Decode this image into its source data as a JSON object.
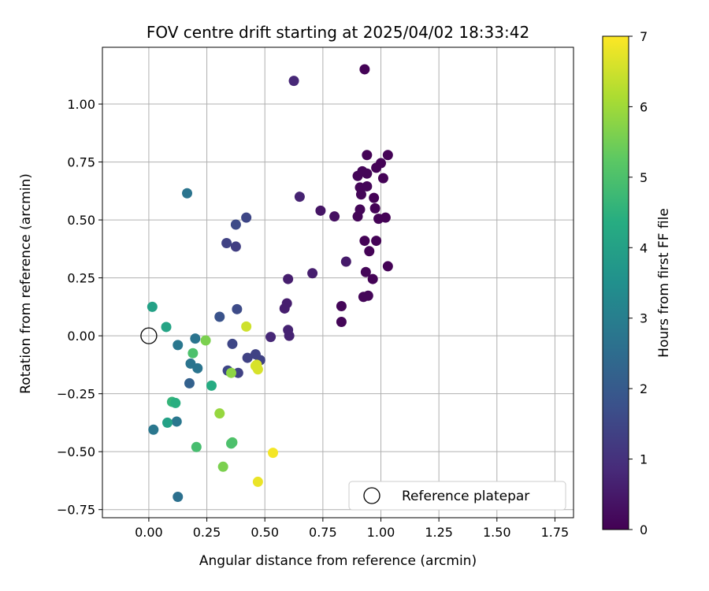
{
  "chart_data": {
    "type": "scatter",
    "title": "FOV centre drift starting at 2025/04/02 18:33:42",
    "xlabel": "Angular distance from reference (arcmin)",
    "ylabel": "Rotation from reference (arcmin)",
    "xlim": [
      -0.2,
      1.83
    ],
    "ylim": [
      -0.785,
      1.245
    ],
    "xticks": [
      0.0,
      0.25,
      0.5,
      0.75,
      1.0,
      1.25,
      1.5,
      1.75
    ],
    "xtick_labels": [
      "0.00",
      "0.25",
      "0.50",
      "0.75",
      "1.00",
      "1.25",
      "1.50",
      "1.75"
    ],
    "yticks": [
      -0.75,
      -0.5,
      -0.25,
      0.0,
      0.25,
      0.5,
      0.75,
      1.0
    ],
    "ytick_labels": [
      "−0.75",
      "−0.50",
      "−0.25",
      "0.00",
      "0.25",
      "0.50",
      "0.75",
      "1.00"
    ],
    "grid": true,
    "colormap": "viridis",
    "colorbar": {
      "label": "Hours from first FF file",
      "range": [
        0,
        7
      ],
      "ticks": [
        0,
        1,
        2,
        3,
        4,
        5,
        6,
        7
      ],
      "tick_labels": [
        "0",
        "1",
        "2",
        "3",
        "4",
        "5",
        "6",
        "7"
      ]
    },
    "legend": {
      "location": "lower right",
      "entries": [
        "Reference platepar"
      ]
    },
    "reference_point": {
      "x": 0.0,
      "y": 0.0,
      "label": "Reference platepar"
    },
    "series": [
      {
        "points": [
          {
            "x": 0.93,
            "y": 1.15,
            "c": 0.05
          },
          {
            "x": 0.94,
            "y": 0.78,
            "c": 0.05
          },
          {
            "x": 0.9,
            "y": 0.69,
            "c": 0.1
          },
          {
            "x": 0.92,
            "y": 0.71,
            "c": 0.1
          },
          {
            "x": 0.94,
            "y": 0.7,
            "c": 0.1
          },
          {
            "x": 0.91,
            "y": 0.64,
            "c": 0.1
          },
          {
            "x": 0.94,
            "y": 0.645,
            "c": 0.1
          },
          {
            "x": 0.915,
            "y": 0.61,
            "c": 0.1
          },
          {
            "x": 1.0,
            "y": 0.745,
            "c": 0.05
          },
          {
            "x": 0.98,
            "y": 0.725,
            "c": 0.05
          },
          {
            "x": 1.01,
            "y": 0.68,
            "c": 0.05
          },
          {
            "x": 1.03,
            "y": 0.78,
            "c": 0.05
          },
          {
            "x": 0.97,
            "y": 0.595,
            "c": 0.05
          },
          {
            "x": 0.975,
            "y": 0.55,
            "c": 0.05
          },
          {
            "x": 0.99,
            "y": 0.505,
            "c": 0.05
          },
          {
            "x": 1.02,
            "y": 0.51,
            "c": 0.05
          },
          {
            "x": 0.91,
            "y": 0.545,
            "c": 0.1
          },
          {
            "x": 0.9,
            "y": 0.515,
            "c": 0.1
          },
          {
            "x": 0.93,
            "y": 0.41,
            "c": 0.05
          },
          {
            "x": 0.98,
            "y": 0.41,
            "c": 0.05
          },
          {
            "x": 0.95,
            "y": 0.365,
            "c": 0.05
          },
          {
            "x": 1.03,
            "y": 0.3,
            "c": 0.05
          },
          {
            "x": 0.935,
            "y": 0.275,
            "c": 0.1
          },
          {
            "x": 0.965,
            "y": 0.245,
            "c": 0.05
          },
          {
            "x": 0.925,
            "y": 0.168,
            "c": 0.1
          },
          {
            "x": 0.945,
            "y": 0.173,
            "c": 0.1
          },
          {
            "x": 0.83,
            "y": 0.128,
            "c": 0.1
          },
          {
            "x": 0.83,
            "y": 0.06,
            "c": 0.1
          },
          {
            "x": 0.8,
            "y": 0.515,
            "c": 0.3
          },
          {
            "x": 0.74,
            "y": 0.54,
            "c": 0.4
          },
          {
            "x": 0.85,
            "y": 0.32,
            "c": 0.5
          },
          {
            "x": 0.705,
            "y": 0.27,
            "c": 0.6
          },
          {
            "x": 0.65,
            "y": 0.6,
            "c": 0.7
          },
          {
            "x": 0.625,
            "y": 1.1,
            "c": 0.8
          },
          {
            "x": 0.6,
            "y": 0.245,
            "c": 0.6
          },
          {
            "x": 0.595,
            "y": 0.14,
            "c": 0.6
          },
          {
            "x": 0.585,
            "y": 0.118,
            "c": 0.6
          },
          {
            "x": 0.6,
            "y": 0.025,
            "c": 0.7
          },
          {
            "x": 0.605,
            "y": 0.0,
            "c": 0.7
          },
          {
            "x": 0.525,
            "y": -0.005,
            "c": 0.8
          },
          {
            "x": 0.42,
            "y": 0.51,
            "c": 1.5
          },
          {
            "x": 0.375,
            "y": 0.48,
            "c": 1.6
          },
          {
            "x": 0.335,
            "y": 0.4,
            "c": 1.4
          },
          {
            "x": 0.375,
            "y": 0.385,
            "c": 1.3
          },
          {
            "x": 0.38,
            "y": 0.115,
            "c": 1.6
          },
          {
            "x": 0.305,
            "y": 0.082,
            "c": 1.8
          },
          {
            "x": 0.36,
            "y": -0.035,
            "c": 1.5
          },
          {
            "x": 0.46,
            "y": -0.08,
            "c": 1.4
          },
          {
            "x": 0.425,
            "y": -0.095,
            "c": 1.4
          },
          {
            "x": 0.48,
            "y": -0.105,
            "c": 1.4
          },
          {
            "x": 0.34,
            "y": -0.15,
            "c": 1.5
          },
          {
            "x": 0.385,
            "y": -0.16,
            "c": 1.4
          },
          {
            "x": 0.165,
            "y": 0.615,
            "c": 2.7
          },
          {
            "x": 0.2,
            "y": -0.012,
            "c": 2.7
          },
          {
            "x": 0.125,
            "y": -0.04,
            "c": 2.8
          },
          {
            "x": 0.18,
            "y": -0.12,
            "c": 2.7
          },
          {
            "x": 0.21,
            "y": -0.14,
            "c": 2.7
          },
          {
            "x": 0.175,
            "y": -0.205,
            "c": 2.2
          },
          {
            "x": 0.12,
            "y": -0.37,
            "c": 2.8
          },
          {
            "x": 0.02,
            "y": -0.405,
            "c": 2.8
          },
          {
            "x": 0.125,
            "y": -0.695,
            "c": 2.6
          },
          {
            "x": 0.015,
            "y": 0.125,
            "c": 4.0
          },
          {
            "x": 0.075,
            "y": 0.038,
            "c": 4.1
          },
          {
            "x": 0.08,
            "y": -0.375,
            "c": 4.0
          },
          {
            "x": 0.27,
            "y": -0.215,
            "c": 4.3
          },
          {
            "x": 0.1,
            "y": -0.285,
            "c": 4.6
          },
          {
            "x": 0.115,
            "y": -0.29,
            "c": 4.4
          },
          {
            "x": 0.19,
            "y": -0.075,
            "c": 5.0
          },
          {
            "x": 0.205,
            "y": -0.48,
            "c": 4.9
          },
          {
            "x": 0.36,
            "y": -0.46,
            "c": 5.1
          },
          {
            "x": 0.355,
            "y": -0.465,
            "c": 5.0
          },
          {
            "x": 0.245,
            "y": -0.02,
            "c": 5.6
          },
          {
            "x": 0.355,
            "y": -0.16,
            "c": 5.8
          },
          {
            "x": 0.32,
            "y": -0.565,
            "c": 5.6
          },
          {
            "x": 0.305,
            "y": -0.335,
            "c": 5.9
          },
          {
            "x": 0.42,
            "y": 0.04,
            "c": 6.5
          },
          {
            "x": 0.465,
            "y": -0.125,
            "c": 6.6
          },
          {
            "x": 0.46,
            "y": -0.13,
            "c": 6.6
          },
          {
            "x": 0.47,
            "y": -0.145,
            "c": 6.6
          },
          {
            "x": 0.47,
            "y": -0.63,
            "c": 6.8
          },
          {
            "x": 0.535,
            "y": -0.505,
            "c": 6.9
          }
        ]
      }
    ]
  }
}
